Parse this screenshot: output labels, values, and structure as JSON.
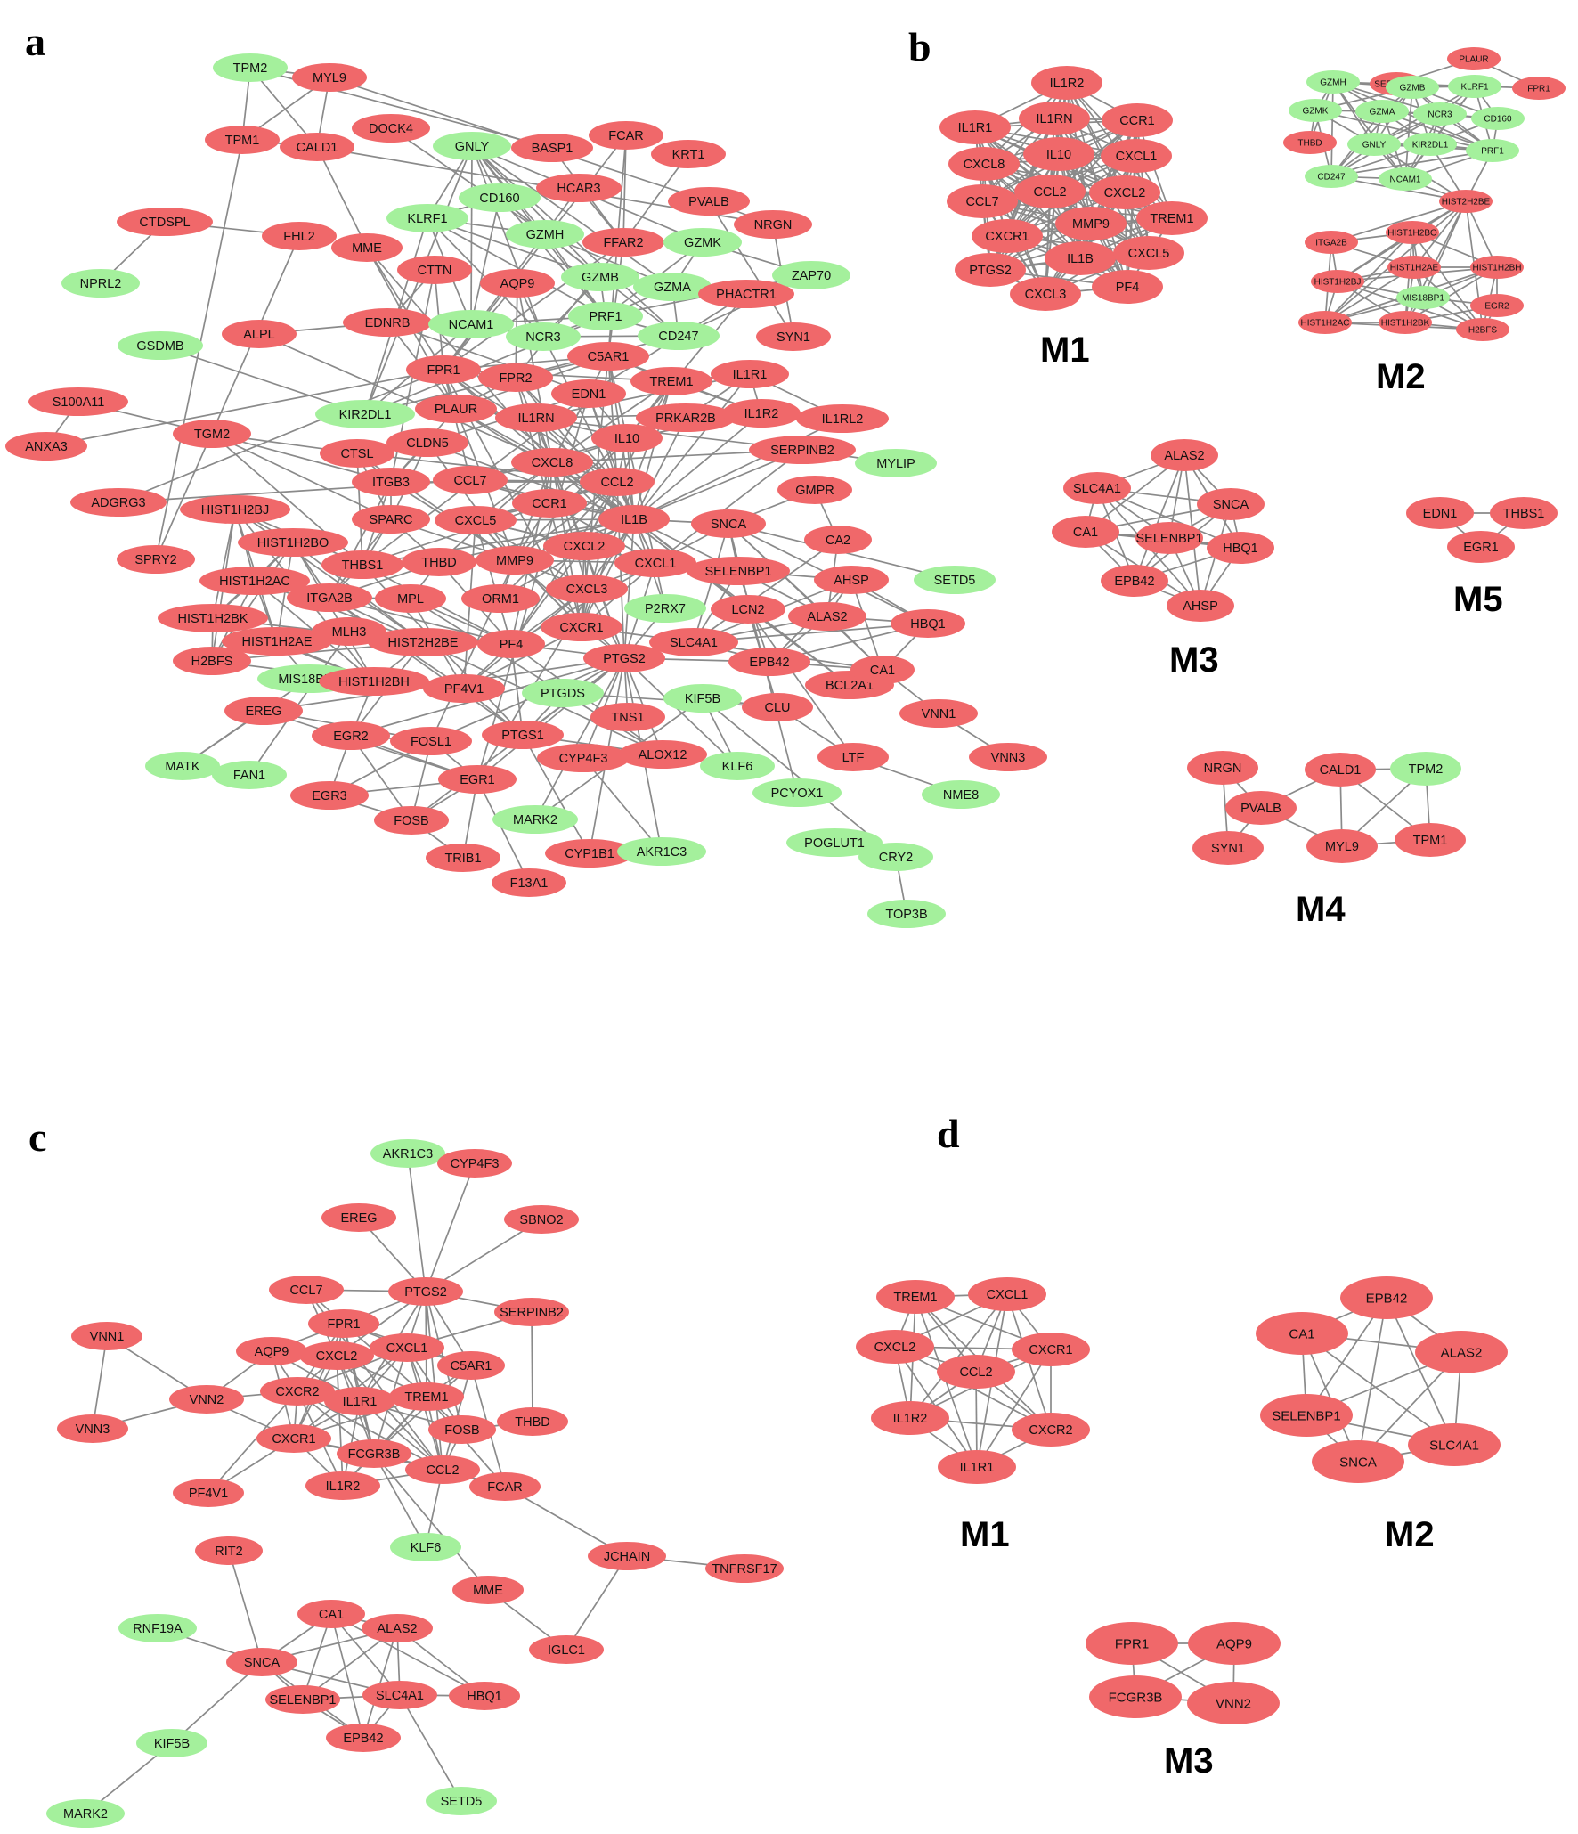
{
  "colors": {
    "up": "#f0686a",
    "down": "#a4f09c",
    "edge": "#8a8a8a",
    "background": "#ffffff"
  },
  "panels": [
    {
      "id": "a",
      "letter": "a",
      "modules": [],
      "nodes": [
        {
          "id": "TPM2",
          "c": "down"
        },
        {
          "id": "MYL9",
          "c": "up"
        },
        {
          "id": "TPM1",
          "c": "up"
        },
        {
          "id": "CALD1",
          "c": "up"
        },
        {
          "id": "DOCK4",
          "c": "up"
        },
        {
          "id": "GNLY",
          "c": "down"
        },
        {
          "id": "BASP1",
          "c": "up"
        },
        {
          "id": "FCAR",
          "c": "up"
        },
        {
          "id": "KRT1",
          "c": "up"
        },
        {
          "id": "CD160",
          "c": "down"
        },
        {
          "id": "HCAR3",
          "c": "up"
        },
        {
          "id": "PVALB",
          "c": "up"
        },
        {
          "id": "CTDSPL",
          "c": "up"
        },
        {
          "id": "FHL2",
          "c": "up"
        },
        {
          "id": "KLRF1",
          "c": "down"
        },
        {
          "id": "MME",
          "c": "up"
        },
        {
          "id": "GZMH",
          "c": "down"
        },
        {
          "id": "FFAR2",
          "c": "up"
        },
        {
          "id": "GZMK",
          "c": "down"
        },
        {
          "id": "NRGN",
          "c": "up"
        },
        {
          "id": "NPRL2",
          "c": "down"
        },
        {
          "id": "CTTN",
          "c": "up"
        },
        {
          "id": "AQP9",
          "c": "up"
        },
        {
          "id": "GZMB",
          "c": "down"
        },
        {
          "id": "GZMA",
          "c": "down"
        },
        {
          "id": "PHACTR1",
          "c": "up"
        },
        {
          "id": "ZAP70",
          "c": "down"
        },
        {
          "id": "GSDMB",
          "c": "down"
        },
        {
          "id": "ALPL",
          "c": "up"
        },
        {
          "id": "EDNRB",
          "c": "up"
        },
        {
          "id": "NCAM1",
          "c": "down"
        },
        {
          "id": "PRF1",
          "c": "down"
        },
        {
          "id": "NCR3",
          "c": "down"
        },
        {
          "id": "CD247",
          "c": "down"
        },
        {
          "id": "SYN1",
          "c": "up"
        },
        {
          "id": "C5AR1",
          "c": "up"
        },
        {
          "id": "FPR1",
          "c": "up"
        },
        {
          "id": "FPR2",
          "c": "up"
        },
        {
          "id": "TREM1",
          "c": "up"
        },
        {
          "id": "IL1R1",
          "c": "up"
        },
        {
          "id": "S100A11",
          "c": "up"
        },
        {
          "id": "KIR2DL1",
          "c": "down"
        },
        {
          "id": "PLAUR",
          "c": "up"
        },
        {
          "id": "EDN1",
          "c": "up"
        },
        {
          "id": "IL1RN",
          "c": "up"
        },
        {
          "id": "PRKAR2B",
          "c": "up"
        },
        {
          "id": "IL1R2",
          "c": "up"
        },
        {
          "id": "IL1RL2",
          "c": "up"
        },
        {
          "id": "ANXA3",
          "c": "up"
        },
        {
          "id": "TGM2",
          "c": "up"
        },
        {
          "id": "CTSL",
          "c": "up"
        },
        {
          "id": "CLDN5",
          "c": "up"
        },
        {
          "id": "IL10",
          "c": "up"
        },
        {
          "id": "SERPINB2",
          "c": "up"
        },
        {
          "id": "MYLIP",
          "c": "down"
        },
        {
          "id": "ITGB3",
          "c": "up"
        },
        {
          "id": "CCL7",
          "c": "up"
        },
        {
          "id": "CXCL8",
          "c": "up"
        },
        {
          "id": "CCL2",
          "c": "up"
        },
        {
          "id": "ADGRG3",
          "c": "up"
        },
        {
          "id": "HIST1H2BJ",
          "c": "up"
        },
        {
          "id": "SPARC",
          "c": "up"
        },
        {
          "id": "CXCL5",
          "c": "up"
        },
        {
          "id": "CCR1",
          "c": "up"
        },
        {
          "id": "IL1B",
          "c": "up"
        },
        {
          "id": "SNCA",
          "c": "up"
        },
        {
          "id": "GMPR",
          "c": "up"
        },
        {
          "id": "HIST1H2BO",
          "c": "up"
        },
        {
          "id": "CA2",
          "c": "up"
        },
        {
          "id": "SPRY2",
          "c": "up"
        },
        {
          "id": "THBS1",
          "c": "up"
        },
        {
          "id": "THBD",
          "c": "up"
        },
        {
          "id": "MMP9",
          "c": "up"
        },
        {
          "id": "CXCL2",
          "c": "up"
        },
        {
          "id": "CXCL1",
          "c": "up"
        },
        {
          "id": "HIST1H2AC",
          "c": "up"
        },
        {
          "id": "SELENBP1",
          "c": "up"
        },
        {
          "id": "AHSP",
          "c": "up"
        },
        {
          "id": "SETD5",
          "c": "down"
        },
        {
          "id": "ITGA2B",
          "c": "up"
        },
        {
          "id": "MPL",
          "c": "up"
        },
        {
          "id": "ORM1",
          "c": "up"
        },
        {
          "id": "CXCL3",
          "c": "up"
        },
        {
          "id": "P2RX7",
          "c": "down"
        },
        {
          "id": "LCN2",
          "c": "up"
        },
        {
          "id": "ALAS2",
          "c": "up"
        },
        {
          "id": "HBQ1",
          "c": "up"
        },
        {
          "id": "HIST1H2BK",
          "c": "up"
        },
        {
          "id": "MLH3",
          "c": "up"
        },
        {
          "id": "HIST2H2BE",
          "c": "up"
        },
        {
          "id": "CXCR1",
          "c": "up"
        },
        {
          "id": "HIST1H2AE",
          "c": "up"
        },
        {
          "id": "SLC4A1",
          "c": "up"
        },
        {
          "id": "PF4",
          "c": "up"
        },
        {
          "id": "PTGS2",
          "c": "up"
        },
        {
          "id": "EPB42",
          "c": "up"
        },
        {
          "id": "H2BFS",
          "c": "up"
        },
        {
          "id": "MIS18BP1",
          "c": "down"
        },
        {
          "id": "HIST1H2BH",
          "c": "up"
        },
        {
          "id": "BCL2A1",
          "c": "up"
        },
        {
          "id": "CA1",
          "c": "up"
        },
        {
          "id": "PF4V1",
          "c": "up"
        },
        {
          "id": "PTGDS",
          "c": "down"
        },
        {
          "id": "KIF5B",
          "c": "down"
        },
        {
          "id": "CLU",
          "c": "up"
        },
        {
          "id": "EREG",
          "c": "up"
        },
        {
          "id": "VNN1",
          "c": "up"
        },
        {
          "id": "TNS1",
          "c": "up"
        },
        {
          "id": "EGR2",
          "c": "up"
        },
        {
          "id": "FOSL1",
          "c": "up"
        },
        {
          "id": "PTGS1",
          "c": "up"
        },
        {
          "id": "ALOX12",
          "c": "up"
        },
        {
          "id": "LTF",
          "c": "up"
        },
        {
          "id": "VNN3",
          "c": "up"
        },
        {
          "id": "MATK",
          "c": "down"
        },
        {
          "id": "FAN1",
          "c": "down"
        },
        {
          "id": "CYP4F3",
          "c": "up"
        },
        {
          "id": "KLF6",
          "c": "down"
        },
        {
          "id": "EGR1",
          "c": "up"
        },
        {
          "id": "PCYOX1",
          "c": "down"
        },
        {
          "id": "NME8",
          "c": "down"
        },
        {
          "id": "EGR3",
          "c": "up"
        },
        {
          "id": "FOSB",
          "c": "up"
        },
        {
          "id": "MARK2",
          "c": "down"
        },
        {
          "id": "POGLUT1",
          "c": "down"
        },
        {
          "id": "CRY2",
          "c": "down"
        },
        {
          "id": "CYP1B1",
          "c": "up"
        },
        {
          "id": "AKR1C3",
          "c": "down"
        },
        {
          "id": "TRIB1",
          "c": "up"
        },
        {
          "id": "F13A1",
          "c": "up"
        },
        {
          "id": "TOP3B",
          "c": "down"
        }
      ]
    },
    {
      "id": "b",
      "letter": "b",
      "modules": [
        {
          "label": "M1",
          "nodes": [
            {
              "id": "IL1R2",
              "c": "up"
            },
            {
              "id": "IL1R1",
              "c": "up"
            },
            {
              "id": "IL1RN",
              "c": "up"
            },
            {
              "id": "CCR1",
              "c": "up"
            },
            {
              "id": "CXCL8",
              "c": "up"
            },
            {
              "id": "IL10",
              "c": "up"
            },
            {
              "id": "CXCL1",
              "c": "up"
            },
            {
              "id": "CCL7",
              "c": "up"
            },
            {
              "id": "CCL2",
              "c": "up"
            },
            {
              "id": "CXCL2",
              "c": "up"
            },
            {
              "id": "MMP9",
              "c": "up"
            },
            {
              "id": "TREM1",
              "c": "up"
            },
            {
              "id": "CXCR1",
              "c": "up"
            },
            {
              "id": "IL1B",
              "c": "up"
            },
            {
              "id": "CXCL5",
              "c": "up"
            },
            {
              "id": "PTGS2",
              "c": "up"
            },
            {
              "id": "CXCL3",
              "c": "up"
            },
            {
              "id": "PF4",
              "c": "up"
            }
          ]
        },
        {
          "label": "M2",
          "nodes": [
            {
              "id": "SERPINB2",
              "c": "up"
            },
            {
              "id": "PLAUR",
              "c": "up"
            },
            {
              "id": "FPR1",
              "c": "up"
            },
            {
              "id": "GZMH",
              "c": "down"
            },
            {
              "id": "GZMB",
              "c": "down"
            },
            {
              "id": "KLRF1",
              "c": "down"
            },
            {
              "id": "GZMK",
              "c": "down"
            },
            {
              "id": "GZMA",
              "c": "down"
            },
            {
              "id": "NCR3",
              "c": "down"
            },
            {
              "id": "CD160",
              "c": "down"
            },
            {
              "id": "THBD",
              "c": "up"
            },
            {
              "id": "GNLY",
              "c": "down"
            },
            {
              "id": "KIR2DL1",
              "c": "down"
            },
            {
              "id": "PRF1",
              "c": "down"
            },
            {
              "id": "CD247",
              "c": "down"
            },
            {
              "id": "NCAM1",
              "c": "down"
            },
            {
              "id": "HIST2H2BE",
              "c": "up"
            },
            {
              "id": "ITGA2B",
              "c": "up"
            },
            {
              "id": "HIST1H2BO",
              "c": "up"
            },
            {
              "id": "HIST1H2AE",
              "c": "up"
            },
            {
              "id": "HIST1H2BH",
              "c": "up"
            },
            {
              "id": "HIST1H2BJ",
              "c": "up"
            },
            {
              "id": "MIS18BP1",
              "c": "down"
            },
            {
              "id": "EGR2",
              "c": "up"
            },
            {
              "id": "HIST1H2AC",
              "c": "up"
            },
            {
              "id": "HIST1H2BK",
              "c": "up"
            },
            {
              "id": "H2BFS",
              "c": "up"
            }
          ]
        },
        {
          "label": "M3",
          "nodes": [
            {
              "id": "ALAS2",
              "c": "up"
            },
            {
              "id": "SLC4A1",
              "c": "up"
            },
            {
              "id": "SNCA",
              "c": "up"
            },
            {
              "id": "CA1",
              "c": "up"
            },
            {
              "id": "SELENBP1",
              "c": "up"
            },
            {
              "id": "HBQ1",
              "c": "up"
            },
            {
              "id": "EPB42",
              "c": "up"
            },
            {
              "id": "AHSP",
              "c": "up"
            }
          ]
        },
        {
          "label": "M4",
          "nodes": [
            {
              "id": "NRGN",
              "c": "up"
            },
            {
              "id": "CALD1",
              "c": "up"
            },
            {
              "id": "TPM2",
              "c": "down"
            },
            {
              "id": "PVALB",
              "c": "up"
            },
            {
              "id": "SYN1",
              "c": "up"
            },
            {
              "id": "MYL9",
              "c": "up"
            },
            {
              "id": "TPM1",
              "c": "up"
            }
          ]
        },
        {
          "label": "M5",
          "nodes": [
            {
              "id": "EDN1",
              "c": "up"
            },
            {
              "id": "THBS1",
              "c": "up"
            },
            {
              "id": "EGR1",
              "c": "up"
            }
          ]
        }
      ]
    },
    {
      "id": "c",
      "letter": "c",
      "modules": [],
      "nodes": [
        {
          "id": "AKR1C3",
          "c": "down"
        },
        {
          "id": "CYP4F3",
          "c": "up"
        },
        {
          "id": "EREG",
          "c": "up"
        },
        {
          "id": "SBNO2",
          "c": "up"
        },
        {
          "id": "CCL7",
          "c": "up"
        },
        {
          "id": "PTGS2",
          "c": "up"
        },
        {
          "id": "SERPINB2",
          "c": "up"
        },
        {
          "id": "FPR1",
          "c": "up"
        },
        {
          "id": "VNN1",
          "c": "up"
        },
        {
          "id": "AQP9",
          "c": "up"
        },
        {
          "id": "CXCL1",
          "c": "up"
        },
        {
          "id": "CXCL2",
          "c": "up"
        },
        {
          "id": "C5AR1",
          "c": "up"
        },
        {
          "id": "VNN2",
          "c": "up"
        },
        {
          "id": "CXCR2",
          "c": "up"
        },
        {
          "id": "IL1R1",
          "c": "up"
        },
        {
          "id": "TREM1",
          "c": "up"
        },
        {
          "id": "VNN3",
          "c": "up"
        },
        {
          "id": "CXCR1",
          "c": "up"
        },
        {
          "id": "FOSB",
          "c": "up"
        },
        {
          "id": "THBD",
          "c": "up"
        },
        {
          "id": "FCGR3B",
          "c": "up"
        },
        {
          "id": "CCL2",
          "c": "up"
        },
        {
          "id": "PF4V1",
          "c": "up"
        },
        {
          "id": "IL1R2",
          "c": "up"
        },
        {
          "id": "FCAR",
          "c": "up"
        },
        {
          "id": "KLF6",
          "c": "down"
        },
        {
          "id": "RIT2",
          "c": "up"
        },
        {
          "id": "JCHAIN",
          "c": "up"
        },
        {
          "id": "TNFRSF17",
          "c": "up"
        },
        {
          "id": "MME",
          "c": "up"
        },
        {
          "id": "CA1",
          "c": "up"
        },
        {
          "id": "RNF19A",
          "c": "down"
        },
        {
          "id": "ALAS2",
          "c": "up"
        },
        {
          "id": "SNCA",
          "c": "up"
        },
        {
          "id": "IGLC1",
          "c": "up"
        },
        {
          "id": "SELENBP1",
          "c": "up"
        },
        {
          "id": "SLC4A1",
          "c": "up"
        },
        {
          "id": "HBQ1",
          "c": "up"
        },
        {
          "id": "KIF5B",
          "c": "down"
        },
        {
          "id": "EPB42",
          "c": "up"
        },
        {
          "id": "SETD5",
          "c": "down"
        },
        {
          "id": "MARK2",
          "c": "down"
        }
      ]
    },
    {
      "id": "d",
      "letter": "d",
      "modules": [
        {
          "label": "M1",
          "nodes": [
            {
              "id": "TREM1",
              "c": "up"
            },
            {
              "id": "CXCL1",
              "c": "up"
            },
            {
              "id": "CXCL2",
              "c": "up"
            },
            {
              "id": "CXCR1",
              "c": "up"
            },
            {
              "id": "CCL2",
              "c": "up"
            },
            {
              "id": "IL1R2",
              "c": "up"
            },
            {
              "id": "CXCR2",
              "c": "up"
            },
            {
              "id": "IL1R1",
              "c": "up"
            }
          ]
        },
        {
          "label": "M2",
          "nodes": [
            {
              "id": "EPB42",
              "c": "up"
            },
            {
              "id": "CA1",
              "c": "up"
            },
            {
              "id": "ALAS2",
              "c": "up"
            },
            {
              "id": "SELENBP1",
              "c": "up"
            },
            {
              "id": "SLC4A1",
              "c": "up"
            },
            {
              "id": "SNCA",
              "c": "up"
            }
          ]
        },
        {
          "label": "M3",
          "nodes": [
            {
              "id": "FPR1",
              "c": "up"
            },
            {
              "id": "AQP9",
              "c": "up"
            },
            {
              "id": "FCGR3B",
              "c": "up"
            },
            {
              "id": "VNN2",
              "c": "up"
            }
          ]
        }
      ]
    }
  ]
}
